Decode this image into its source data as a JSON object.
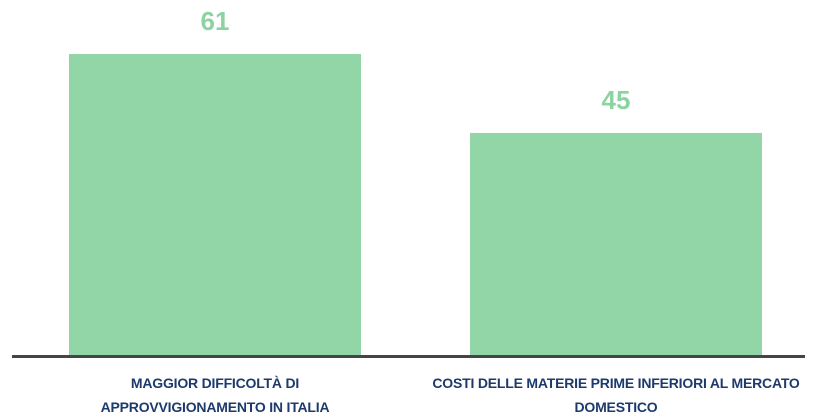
{
  "chart_data": {
    "type": "bar",
    "categories": [
      "MAGGIOR DIFFICOLTÀ DI APPROVVIGIONAMENTO IN ITALIA",
      "COSTI DELLE MATERIE PRIME INFERIORI AL MERCATO DOMESTICO"
    ],
    "values": [
      61,
      45
    ],
    "color": "#92d5a6",
    "label_color": "#8dd3a1",
    "category_color": "#1d3a6c",
    "axis_color": "#454545"
  }
}
